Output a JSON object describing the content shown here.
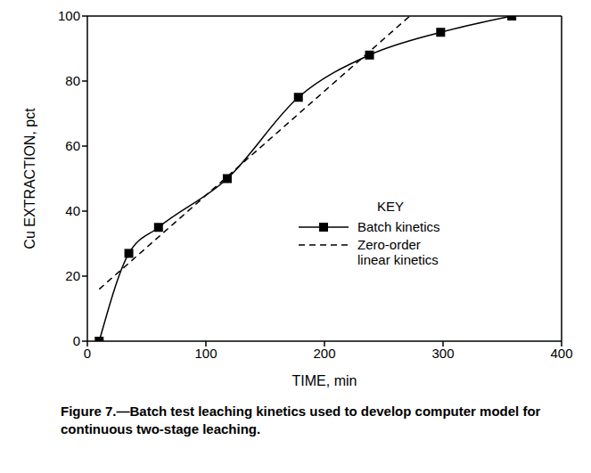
{
  "chart_data": {
    "type": "line",
    "title": "Figure 7.—Batch test leaching kinetics used to develop computer model for continuous two-stage leaching.",
    "x_label": "TIME, min",
    "y_label": "Cu EXTRACTION, pct",
    "legend_title": "KEY",
    "legend": "right",
    "grid": false,
    "xlim": [
      0,
      400
    ],
    "xticks": [
      0,
      100,
      200,
      300,
      400
    ],
    "ylim": [
      0,
      100
    ],
    "yticks": [
      0,
      20,
      40,
      60,
      80,
      100
    ],
    "series": [
      {
        "name": "Batch kinetics",
        "color": "#000000",
        "marker": "square",
        "line_style": "solid",
        "x": [
          10,
          35,
          60,
          118,
          178,
          238,
          298,
          358
        ],
        "values": [
          0,
          27,
          35,
          50,
          75,
          88,
          95,
          100
        ]
      },
      {
        "name": "Zero-order linear kinetics",
        "color": "#000000",
        "marker": "none",
        "line_style": "dashed",
        "x": [
          10,
          272
        ],
        "values": [
          16,
          100
        ]
      }
    ]
  }
}
